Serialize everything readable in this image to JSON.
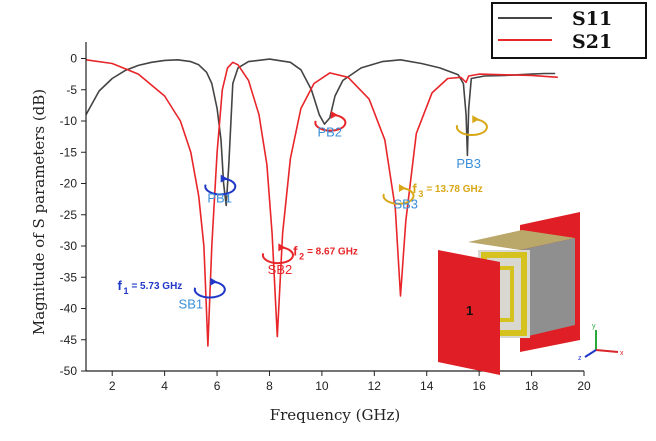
{
  "chart_data": {
    "type": "line",
    "title": "",
    "xlabel": "Frequency (GHz)",
    "ylabel": "Magnitude of S parameters (dB)",
    "xlim": [
      1,
      20
    ],
    "ylim": [
      -50,
      2
    ],
    "x_ticks": [
      2,
      4,
      6,
      8,
      10,
      12,
      14,
      16,
      18,
      20
    ],
    "y_ticks": [
      0,
      -5,
      -10,
      -15,
      -20,
      -25,
      -30,
      -35,
      -40,
      -45,
      -50
    ],
    "legend": {
      "position": "top-right"
    },
    "series": [
      {
        "name": "S11",
        "color": "#444444",
        "points": [
          [
            1.0,
            -9.0
          ],
          [
            1.5,
            -5.2
          ],
          [
            2.0,
            -3.2
          ],
          [
            2.5,
            -1.9
          ],
          [
            3.0,
            -1.1
          ],
          [
            3.5,
            -0.6
          ],
          [
            4.0,
            -0.3
          ],
          [
            4.5,
            -0.2
          ],
          [
            5.0,
            -0.5
          ],
          [
            5.3,
            -1.0
          ],
          [
            5.6,
            -2.2
          ],
          [
            5.8,
            -4.0
          ],
          [
            6.0,
            -8.0
          ],
          [
            6.15,
            -13.0
          ],
          [
            6.25,
            -20.0
          ],
          [
            6.35,
            -23.5
          ],
          [
            6.45,
            -17.0
          ],
          [
            6.6,
            -4.0
          ],
          [
            6.8,
            -1.5
          ],
          [
            7.2,
            -0.5
          ],
          [
            8.0,
            -0.1
          ],
          [
            8.8,
            -0.6
          ],
          [
            9.2,
            -1.8
          ],
          [
            9.6,
            -5.0
          ],
          [
            9.9,
            -9.0
          ],
          [
            10.1,
            -10.5
          ],
          [
            10.3,
            -9.5
          ],
          [
            10.5,
            -6.0
          ],
          [
            10.8,
            -3.5
          ],
          [
            11.5,
            -1.5
          ],
          [
            12.3,
            -0.5
          ],
          [
            13.0,
            -0.2
          ],
          [
            13.8,
            -0.8
          ],
          [
            14.5,
            -1.5
          ],
          [
            15.2,
            -2.6
          ],
          [
            15.4,
            -4.0
          ],
          [
            15.5,
            -9.0
          ],
          [
            15.55,
            -15.5
          ],
          [
            15.6,
            -8.0
          ],
          [
            15.7,
            -3.2
          ],
          [
            16.2,
            -2.8
          ],
          [
            17.0,
            -2.7
          ],
          [
            18.0,
            -2.5
          ],
          [
            18.5,
            -2.4
          ],
          [
            18.9,
            -2.4
          ]
        ]
      },
      {
        "name": "S21",
        "color": "#e8262a",
        "points": [
          [
            1.0,
            -0.2
          ],
          [
            2.0,
            -0.8
          ],
          [
            3.0,
            -2.5
          ],
          [
            4.0,
            -6.0
          ],
          [
            4.6,
            -10.0
          ],
          [
            5.0,
            -15.0
          ],
          [
            5.3,
            -22.0
          ],
          [
            5.5,
            -30.0
          ],
          [
            5.65,
            -46.0
          ],
          [
            5.8,
            -30.0
          ],
          [
            6.0,
            -15.0
          ],
          [
            6.2,
            -5.0
          ],
          [
            6.4,
            -1.5
          ],
          [
            6.6,
            -0.6
          ],
          [
            6.8,
            -1.0
          ],
          [
            7.2,
            -3.5
          ],
          [
            7.6,
            -9.0
          ],
          [
            7.9,
            -17.0
          ],
          [
            8.1,
            -28.0
          ],
          [
            8.3,
            -44.5
          ],
          [
            8.5,
            -28.0
          ],
          [
            8.8,
            -16.0
          ],
          [
            9.2,
            -8.0
          ],
          [
            9.7,
            -4.0
          ],
          [
            10.3,
            -2.3
          ],
          [
            11.0,
            -3.0
          ],
          [
            11.8,
            -6.5
          ],
          [
            12.4,
            -13.0
          ],
          [
            12.8,
            -24.0
          ],
          [
            13.0,
            -38.0
          ],
          [
            13.2,
            -26.0
          ],
          [
            13.6,
            -12.0
          ],
          [
            14.2,
            -5.5
          ],
          [
            14.8,
            -3.2
          ],
          [
            15.3,
            -3.0
          ],
          [
            15.5,
            -3.8
          ],
          [
            15.6,
            -2.8
          ],
          [
            16.0,
            -2.5
          ],
          [
            17.0,
            -2.6
          ],
          [
            18.0,
            -2.7
          ],
          [
            19.0,
            -3.0
          ]
        ]
      }
    ],
    "annotations": [
      {
        "label": "PB1",
        "color": "#3b8fd8",
        "x": 6.1,
        "y": -23
      },
      {
        "label": "PB2",
        "color": "#3b8fd8",
        "x": 10.3,
        "y": -12.5
      },
      {
        "label": "PB3",
        "color": "#3b8fd8",
        "x": 15.6,
        "y": -17.5
      },
      {
        "label": "SB1",
        "color": "#3b8fd8",
        "x": 5.0,
        "y": -40
      },
      {
        "label": "SB2",
        "color": "#e8262a",
        "x": 8.4,
        "y": -34.5
      },
      {
        "label": "SB3",
        "color": "#3b8fd8",
        "x": 13.2,
        "y": -24
      }
    ],
    "frequency_labels": [
      {
        "prefix": "f",
        "sub": "1",
        "text": "= 5.73 GHz",
        "color": "#2038c8",
        "x": 2.2,
        "y": -37
      },
      {
        "prefix": "f",
        "sub": "2",
        "text": "= 8.67 GHz",
        "color": "#e8262a",
        "x": 8.9,
        "y": -31.5
      },
      {
        "prefix": "f",
        "sub": "3",
        "text": "= 13.78 GHz",
        "color": "#d8a818",
        "x": 13.45,
        "y": -21.5
      }
    ],
    "markers": [
      {
        "type": "loop",
        "color": "#2038c8",
        "x": 6.1,
        "y": -20.5
      },
      {
        "type": "loop",
        "color": "#e8262a",
        "x": 10.3,
        "y": -10.3
      },
      {
        "type": "loop",
        "color": "#d8a818",
        "x": 15.7,
        "y": -11.0
      },
      {
        "type": "loop",
        "color": "#2038c8",
        "x": 5.7,
        "y": -37
      },
      {
        "type": "loop",
        "color": "#e8262a",
        "x": 8.3,
        "y": -31.5
      },
      {
        "type": "loop",
        "color": "#d8a818",
        "x": 12.9,
        "y": -22
      }
    ],
    "inset": {
      "port_label": "1",
      "axes_labels": [
        "x",
        "y",
        "z"
      ]
    }
  }
}
